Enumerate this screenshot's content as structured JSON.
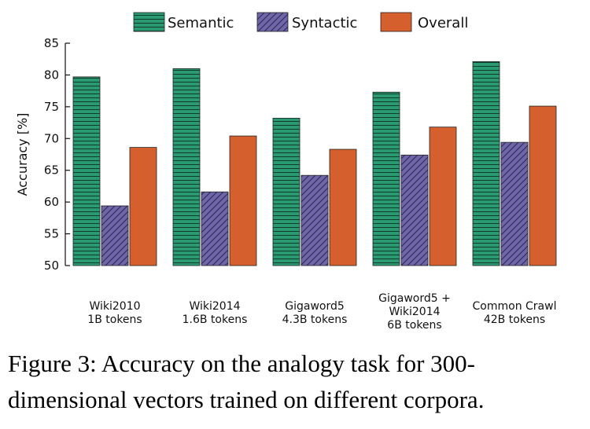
{
  "caption": "Figure 3:  Accuracy on the analogy task for 300-dimensional vectors trained on different corpora.",
  "colors": {
    "semantic": "#2a9a72",
    "syntactic": "#6e66a8",
    "overall": "#d65f2e"
  },
  "chart_data": {
    "type": "bar",
    "ylabel": "Accuracy [%]",
    "ylim": [
      50,
      85
    ],
    "yticks": [
      50,
      55,
      60,
      65,
      70,
      75,
      80,
      85
    ],
    "categories": [
      [
        "Wiki2010",
        "1B tokens"
      ],
      [
        "Wiki2014",
        "1.6B tokens"
      ],
      [
        "Gigaword5",
        "4.3B tokens"
      ],
      [
        "Gigaword5 +",
        "Wiki2014",
        "6B tokens"
      ],
      [
        "Common Crawl",
        "42B tokens"
      ]
    ],
    "series": [
      {
        "name": "Semantic",
        "pattern": "horizontal-lines",
        "values": [
          79.7,
          81.0,
          73.2,
          77.3,
          82.1
        ]
      },
      {
        "name": "Syntactic",
        "pattern": "diagonal-hatch",
        "values": [
          59.4,
          61.6,
          64.2,
          67.4,
          69.4
        ]
      },
      {
        "name": "Overall",
        "pattern": "solid",
        "values": [
          68.6,
          70.4,
          68.3,
          71.8,
          75.1
        ]
      }
    ],
    "legend_position": "top",
    "grid": false
  }
}
